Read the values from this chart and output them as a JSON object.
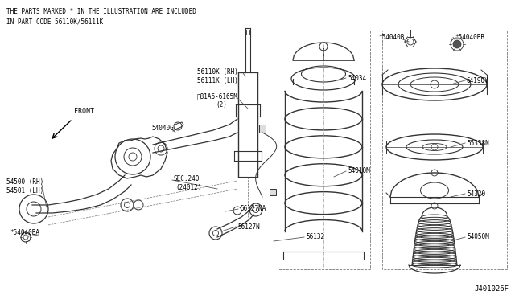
{
  "bg_color": "#ffffff",
  "line_color": "#333333",
  "text_color": "#000000",
  "note_text_line1": "THE PARTS MARKED * IN THE ILLUSTRATION ARE INCLUDED",
  "note_text_line2": "IN PART CODE 56110K/56111K",
  "diagram_id": "J401026F",
  "fig_w": 6.4,
  "fig_h": 3.72,
  "dpi": 100
}
